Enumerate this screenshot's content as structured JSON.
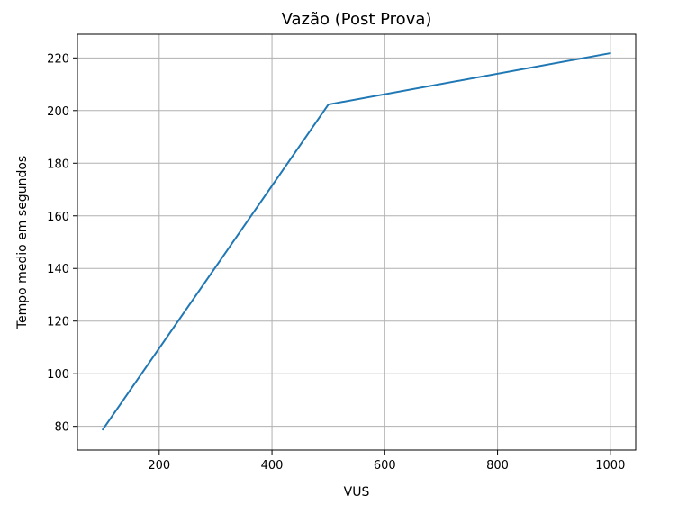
{
  "chart_data": {
    "type": "line",
    "title": "Vazão (Post Prova)",
    "xlabel": "VUS",
    "ylabel": "Tempo medio em segundos",
    "xlim": [
      55,
      1045
    ],
    "ylim": [
      71,
      229
    ],
    "xticks": [
      200,
      400,
      600,
      800,
      1000
    ],
    "yticks": [
      80,
      100,
      120,
      140,
      160,
      180,
      200,
      220
    ],
    "grid": true,
    "series": [
      {
        "color": "#1f77b4",
        "x": [
          100,
          500,
          1000
        ],
        "y": [
          78.8,
          202.3,
          221.8
        ]
      }
    ]
  }
}
